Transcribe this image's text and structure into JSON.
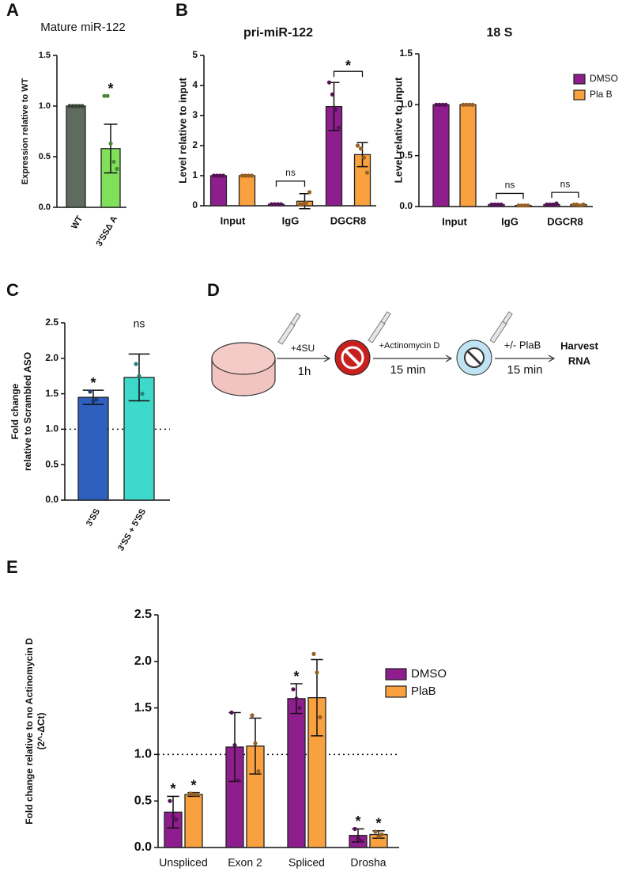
{
  "chart_data": [
    {
      "type": "bar",
      "panel": "A",
      "title": "Mature miR-122",
      "ylabel": "Expression relative to WT",
      "categories": [
        "WT",
        "3'SSΔ A"
      ],
      "values": [
        1,
        0.58
      ],
      "errors": [
        null,
        0.24
      ],
      "colors": [
        "#5e6b5e",
        "#80e05c"
      ],
      "points": [
        [
          1,
          1,
          1,
          1,
          1
        ],
        [
          1.1,
          1.1,
          0.63,
          0.45,
          0.38
        ]
      ],
      "ylim": [
        0,
        1.5
      ],
      "yticks": [
        {
          "value": 0,
          "label": "0.0"
        },
        0.5,
        {
          "value": 1,
          "label": "1.0"
        },
        1.5
      ],
      "annotations": [
        {
          "text": "*",
          "category": 1
        }
      ]
    },
    {
      "type": "grouped_bar",
      "panel": "B",
      "title": "pri-miR-122",
      "ylabel": "Level relative to input",
      "categories": [
        "Input",
        "IgG",
        "DGCR8"
      ],
      "series": [
        {
          "color": "#8e1d8e",
          "values": [
            1,
            0.05,
            3.3
          ],
          "errors": [
            null,
            null,
            0.8
          ],
          "points": [
            [
              1,
              1,
              1,
              1
            ],
            [
              0.05,
              0.05,
              0.05,
              0.05
            ],
            [
              4.1,
              3.7,
              3.2,
              2.6
            ]
          ]
        },
        {
          "color": "#f9a03f",
          "values": [
            1,
            0.15,
            1.7
          ],
          "errors": [
            null,
            0.25,
            0.4
          ],
          "points": [
            [
              1,
              1,
              1,
              1
            ],
            [
              0.05,
              0.05,
              0.1,
              0.45
            ],
            [
              2,
              1.9,
              1.6,
              1.1
            ]
          ]
        }
      ],
      "ylim": [
        0,
        5
      ],
      "yticks": [
        0,
        1,
        2,
        3,
        4,
        5
      ],
      "annotations": [
        {
          "text": "ns",
          "category": 1,
          "bracket": true
        },
        {
          "text": "*",
          "category": 2,
          "bracket": true
        }
      ]
    },
    {
      "type": "grouped_bar",
      "title": "18 S",
      "ylabel": "Level relative to input",
      "categories": [
        "Input",
        "IgG",
        "DGCR8"
      ],
      "series": [
        {
          "name": "DMSO",
          "color": "#8e1d8e",
          "values": [
            1,
            0.02,
            0.02
          ],
          "errors": [
            null,
            null,
            null
          ],
          "points": [
            [
              1,
              1,
              1,
              1
            ],
            [
              0.02,
              0.02,
              0.02,
              0.02
            ],
            [
              0.02,
              0.02,
              0.02,
              0.03
            ]
          ]
        },
        {
          "name": "Pla B",
          "color": "#f9a03f",
          "values": [
            1,
            0.01,
            0.02
          ],
          "errors": [
            null,
            null,
            null
          ],
          "points": [
            [
              1,
              1,
              1,
              1
            ],
            [
              0.01,
              0.01,
              0.01,
              0.01
            ],
            [
              0.02,
              0.02,
              0.01,
              0.02
            ]
          ]
        }
      ],
      "ylim": [
        0,
        1.5
      ],
      "yticks": [
        {
          "value": 0,
          "label": "0.0"
        },
        0.5,
        {
          "value": 1,
          "label": "1.0"
        },
        1.5
      ],
      "legend": "upper right",
      "annotations": [
        {
          "text": "ns",
          "category": 1,
          "bracket": true
        },
        {
          "text": "ns",
          "category": 2,
          "bracket": true
        }
      ]
    },
    {
      "type": "bar",
      "panel": "C",
      "ylabel": [
        "Fold change",
        "relative to Scrambled ASO"
      ],
      "categories": [
        "3'SS",
        "3'SS + 5'SS"
      ],
      "values": [
        1.45,
        1.73
      ],
      "errors": [
        0.1,
        0.33
      ],
      "colors": [
        "#2f5fbf",
        "#3dd9cb"
      ],
      "points": [
        [
          1.53,
          1.4,
          1.42
        ],
        [
          1.92,
          1.75,
          1.5
        ]
      ],
      "ylim": [
        0,
        2.5
      ],
      "yticks": [
        {
          "value": 0,
          "label": "0.0"
        },
        0.5,
        {
          "value": 1,
          "label": "1.0"
        },
        1.5,
        {
          "value": 2,
          "label": "2.0"
        },
        2.5
      ],
      "reference_line": 1,
      "annotations": [
        {
          "text": "*",
          "category": 0
        },
        {
          "text": "ns",
          "category": 1
        }
      ]
    },
    {
      "type": "grouped_bar",
      "panel": "E",
      "ylabel": [
        "Fold change relative to no Actinomycin D",
        "(2^-ΔCt)"
      ],
      "categories": [
        "Unspliced",
        "Exon 2",
        "Spliced",
        "Drosha"
      ],
      "series": [
        {
          "name": "DMSO",
          "color": "#8e1d8e",
          "values": [
            0.38,
            1.08,
            1.6,
            0.13
          ],
          "errors": [
            0.17,
            0.37,
            0.16,
            0.07
          ],
          "points": [
            [
              0.5,
              0.33,
              0.3
            ],
            [
              1.45,
              1.1,
              0.72
            ],
            [
              1.7,
              1.6,
              1.5
            ],
            [
              0.2,
              0.1,
              0.07
            ]
          ]
        },
        {
          "name": "PlaB",
          "color": "#f9a03f",
          "values": [
            0.57,
            1.09,
            1.61,
            0.14
          ],
          "errors": [
            0.02,
            0.3,
            0.41,
            0.04
          ],
          "points": [
            [
              0.58,
              0.57,
              0.57
            ],
            [
              1.42,
              1.12,
              0.82
            ],
            [
              2.08,
              1.88,
              1.4
            ],
            [
              0.17,
              0.12,
              0.14
            ]
          ]
        }
      ],
      "ylim": [
        0,
        2.5
      ],
      "yticks": [
        {
          "value": 0,
          "label": "0.0"
        },
        0.5,
        {
          "value": 1,
          "label": "1.0"
        },
        1.5,
        {
          "value": 2,
          "label": "2.0"
        },
        2.5
      ],
      "reference_line": 1,
      "legend": "upper right",
      "annotations": [
        {
          "text": "*",
          "category": 0,
          "series": 0
        },
        {
          "text": "*",
          "category": 0,
          "series": 1
        },
        {
          "text": "*",
          "category": 2,
          "series": 0
        },
        {
          "text": "*",
          "category": 3,
          "series": 0
        },
        {
          "text": "*",
          "category": 3,
          "series": 1
        }
      ]
    }
  ],
  "diagram": {
    "panel": "D",
    "steps": [
      {
        "label": "+4SU",
        "time": "1h"
      },
      {
        "label": "+Actinomycin D",
        "time": "15 min"
      },
      {
        "label": "+/- PlaB",
        "time": "15 min"
      }
    ],
    "end": [
      "Harvest",
      "RNA"
    ]
  }
}
